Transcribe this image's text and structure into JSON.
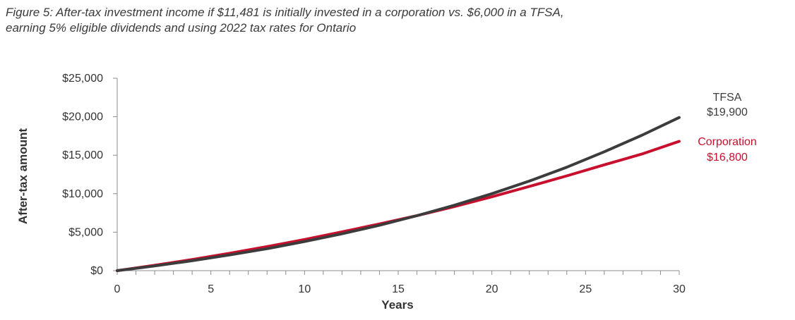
{
  "title_lines": [
    "Figure 5: After-tax investment income if $11,481 is initially invested in a corporation vs. $6,000 in a TFSA,",
    "earning 5% eligible dividends and using 2022 tax rates for Ontario"
  ],
  "chart_data": {
    "type": "line",
    "xlabel": "Years",
    "ylabel": "After-tax amount",
    "xlim": [
      0,
      30
    ],
    "ylim": [
      0,
      25000
    ],
    "x_ticks": [
      "0",
      "5",
      "10",
      "15",
      "20",
      "25",
      "30"
    ],
    "y_ticks": [
      "$0",
      "$5,000",
      "$10,000",
      "$15,000",
      "$20,000",
      "$25,000"
    ],
    "grid": false,
    "x": [
      0,
      2,
      4,
      6,
      8,
      10,
      12,
      14,
      16,
      18,
      20,
      22,
      24,
      26,
      28,
      30
    ],
    "series": [
      {
        "name": "TFSA",
        "end_label": "$19,900",
        "color": "#3c3c3c",
        "values": [
          0,
          615,
          1290,
          2040,
          2860,
          3780,
          4790,
          5900,
          7140,
          8500,
          10000,
          11640,
          13440,
          15450,
          17580,
          19900
        ]
      },
      {
        "name": "Corporation",
        "end_label": "$16,800",
        "color": "#c8102e",
        "values": [
          0,
          700,
          1450,
          2260,
          3120,
          4050,
          5040,
          6070,
          7150,
          8320,
          9600,
          10940,
          12320,
          13750,
          15150,
          16800
        ]
      }
    ]
  }
}
